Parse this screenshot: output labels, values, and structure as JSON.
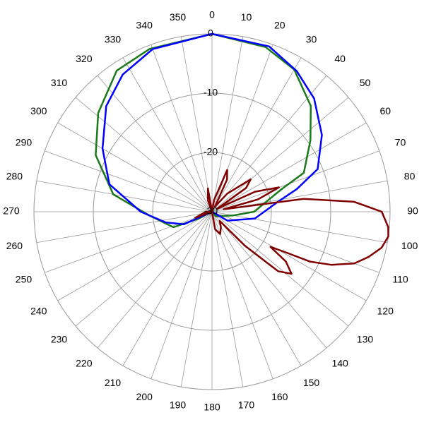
{
  "chart_data": {
    "type": "polar",
    "rlim": [
      -30,
      0
    ],
    "rticks": [
      0,
      -10,
      -20,
      -30
    ],
    "thetaticks": [
      0,
      10,
      20,
      30,
      40,
      50,
      60,
      70,
      80,
      90,
      100,
      110,
      120,
      130,
      140,
      150,
      160,
      170,
      180,
      190,
      200,
      210,
      220,
      230,
      240,
      250,
      260,
      270,
      280,
      290,
      300,
      310,
      320,
      330,
      340,
      350
    ],
    "grid": true,
    "series": [
      {
        "color": "#1a7a1a",
        "theta": [
          0,
          18,
          30,
          43,
          54,
          67,
          72,
          90,
          100,
          140,
          180,
          243,
          248,
          267,
          280,
          296,
          311,
          326,
          339
        ],
        "values": [
          0,
          -0.8,
          -2.3,
          -5.6,
          -9.5,
          -13.2,
          -17.7,
          -22.9,
          -26.4,
          -29,
          -30,
          -27.4,
          -23,
          -19.3,
          -13.1,
          -8.2,
          -4.6,
          -1.3,
          -0.6
        ]
      },
      {
        "color": "#0000ff",
        "theta": [
          0,
          19,
          31,
          42,
          55,
          68,
          75,
          81,
          99,
          120,
          180,
          246,
          257,
          270,
          285,
          300,
          315,
          327,
          340
        ],
        "values": [
          0,
          -0.5,
          -2.3,
          -4.3,
          -7.4,
          -10.8,
          -15.2,
          -18.6,
          -22.7,
          -27,
          -30,
          -24.8,
          -22,
          -18,
          -12.1,
          -8.7,
          -4.8,
          -2.4,
          -0.8
        ]
      },
      {
        "color": "#800000",
        "theta": [
          0,
          10,
          20,
          25,
          30,
          40,
          50,
          55,
          60,
          65,
          70,
          75,
          78,
          82,
          86,
          90,
          95,
          98,
          102,
          106,
          110,
          114,
          117,
          119,
          121,
          124,
          128,
          132,
          136,
          140,
          150,
          160,
          170,
          180,
          250,
          270,
          300,
          340,
          350
        ],
        "values": [
          -30,
          -28,
          -22.5,
          -24,
          -29,
          -26,
          -21.5,
          -23,
          -29,
          -22,
          -18,
          -22,
          -28,
          -14.4,
          -6,
          -1.4,
          -0.2,
          0,
          -0.8,
          -2.5,
          -4.5,
          -8,
          -11.5,
          -16,
          -18.5,
          -15,
          -13,
          -15,
          -22,
          -28,
          -27,
          -26,
          -27,
          -30,
          -27,
          -29,
          -30,
          -28,
          -26
        ]
      }
    ]
  }
}
